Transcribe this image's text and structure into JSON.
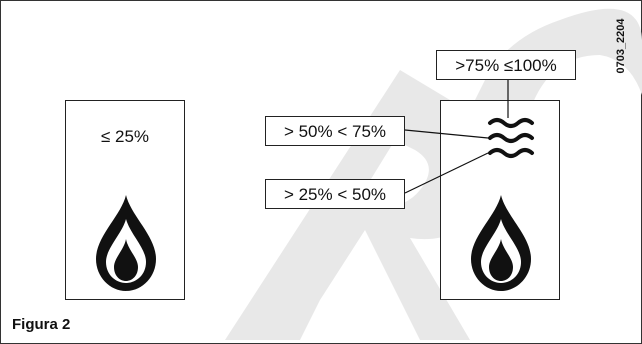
{
  "figure": {
    "caption": "Figura 2",
    "code": "0703_2204",
    "left_panel": {
      "level_label": "≤ 25%"
    },
    "right_panel": {
      "labels": {
        "top": ">75% ≤100%",
        "middle": "> 50% < 75%",
        "low": "> 25% < 50%"
      }
    },
    "watermark_letters": "RC"
  }
}
